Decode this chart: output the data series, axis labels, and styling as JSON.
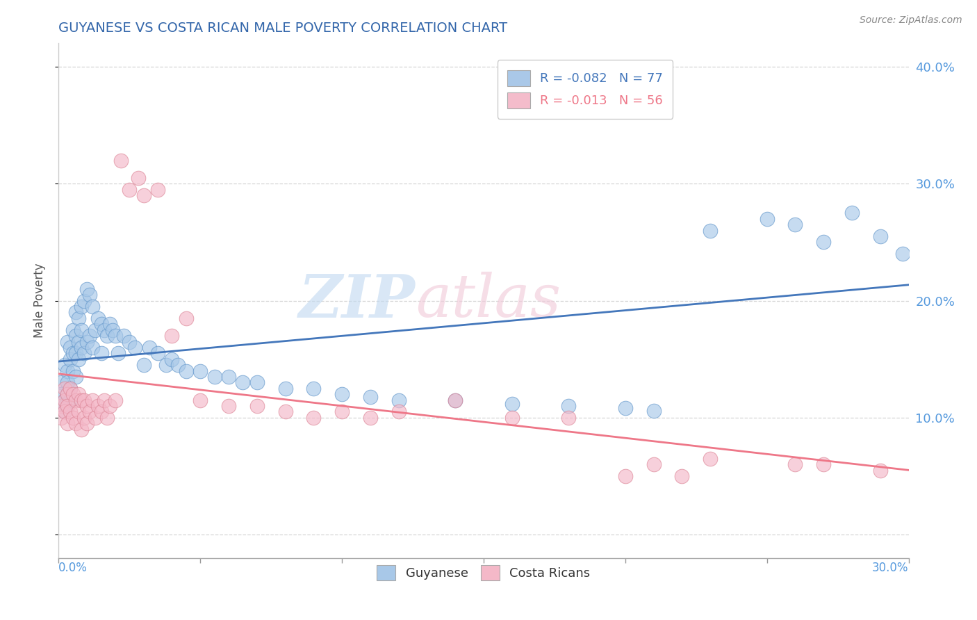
{
  "title": "GUYANESE VS COSTA RICAN MALE POVERTY CORRELATION CHART",
  "source": "Source: ZipAtlas.com",
  "ylabel": "Male Poverty",
  "xlim": [
    0.0,
    0.3
  ],
  "ylim": [
    -0.02,
    0.42
  ],
  "legend_entries": [
    {
      "label": "R = -0.082   N = 77",
      "facecolor": "#aac8e8"
    },
    {
      "label": "R = -0.013   N = 56",
      "facecolor": "#f4bccb"
    }
  ],
  "legend_bottom": [
    "Guyanese",
    "Costa Ricans"
  ],
  "guyanese_facecolor": "#a8c8e8",
  "guyanese_edgecolor": "#6699cc",
  "costa_rican_facecolor": "#f4b8c8",
  "costa_rican_edgecolor": "#dd8899",
  "trend_guyanese_color": "#4477bb",
  "trend_costa_rican_color": "#ee7788",
  "watermark_zip_color": "#c8ddf0",
  "watermark_atlas_color": "#e8c8d0",
  "R_guyanese": -0.082,
  "N_guyanese": 77,
  "R_costa_rican": -0.013,
  "N_costa_rican": 56,
  "background_color": "#ffffff",
  "grid_color": "#cccccc",
  "title_color": "#3366aa",
  "right_tick_color": "#5599dd",
  "bottom_tick_color": "#5599dd",
  "axis_label_color": "#555555",
  "guyanese_scatter_x": [
    0.001,
    0.001,
    0.002,
    0.002,
    0.002,
    0.002,
    0.003,
    0.003,
    0.003,
    0.003,
    0.004,
    0.004,
    0.004,
    0.004,
    0.005,
    0.005,
    0.005,
    0.006,
    0.006,
    0.006,
    0.006,
    0.007,
    0.007,
    0.007,
    0.008,
    0.008,
    0.008,
    0.009,
    0.009,
    0.01,
    0.01,
    0.011,
    0.011,
    0.012,
    0.012,
    0.013,
    0.014,
    0.015,
    0.015,
    0.016,
    0.017,
    0.018,
    0.019,
    0.02,
    0.021,
    0.023,
    0.025,
    0.027,
    0.03,
    0.032,
    0.035,
    0.038,
    0.04,
    0.042,
    0.045,
    0.05,
    0.055,
    0.06,
    0.065,
    0.07,
    0.08,
    0.09,
    0.1,
    0.11,
    0.12,
    0.14,
    0.16,
    0.18,
    0.2,
    0.21,
    0.23,
    0.25,
    0.26,
    0.27,
    0.28,
    0.29,
    0.298
  ],
  "guyanese_scatter_y": [
    0.13,
    0.12,
    0.145,
    0.115,
    0.11,
    0.105,
    0.165,
    0.14,
    0.13,
    0.12,
    0.16,
    0.15,
    0.125,
    0.115,
    0.175,
    0.155,
    0.14,
    0.19,
    0.17,
    0.155,
    0.135,
    0.185,
    0.165,
    0.15,
    0.195,
    0.175,
    0.16,
    0.2,
    0.155,
    0.21,
    0.165,
    0.205,
    0.17,
    0.195,
    0.16,
    0.175,
    0.185,
    0.18,
    0.155,
    0.175,
    0.17,
    0.18,
    0.175,
    0.17,
    0.155,
    0.17,
    0.165,
    0.16,
    0.145,
    0.16,
    0.155,
    0.145,
    0.15,
    0.145,
    0.14,
    0.14,
    0.135,
    0.135,
    0.13,
    0.13,
    0.125,
    0.125,
    0.12,
    0.118,
    0.115,
    0.115,
    0.112,
    0.11,
    0.108,
    0.106,
    0.26,
    0.27,
    0.265,
    0.25,
    0.275,
    0.255,
    0.24
  ],
  "costa_rican_scatter_x": [
    0.001,
    0.001,
    0.002,
    0.002,
    0.002,
    0.003,
    0.003,
    0.003,
    0.004,
    0.004,
    0.005,
    0.005,
    0.006,
    0.006,
    0.007,
    0.007,
    0.008,
    0.008,
    0.009,
    0.009,
    0.01,
    0.01,
    0.011,
    0.012,
    0.013,
    0.014,
    0.015,
    0.016,
    0.017,
    0.018,
    0.02,
    0.022,
    0.025,
    0.028,
    0.03,
    0.035,
    0.04,
    0.045,
    0.05,
    0.06,
    0.07,
    0.08,
    0.09,
    0.1,
    0.11,
    0.12,
    0.14,
    0.16,
    0.18,
    0.2,
    0.21,
    0.22,
    0.23,
    0.26,
    0.27,
    0.29
  ],
  "costa_rican_scatter_y": [
    0.11,
    0.1,
    0.125,
    0.115,
    0.105,
    0.12,
    0.11,
    0.095,
    0.125,
    0.105,
    0.12,
    0.1,
    0.115,
    0.095,
    0.12,
    0.105,
    0.115,
    0.09,
    0.115,
    0.1,
    0.11,
    0.095,
    0.105,
    0.115,
    0.1,
    0.11,
    0.105,
    0.115,
    0.1,
    0.11,
    0.115,
    0.32,
    0.295,
    0.305,
    0.29,
    0.295,
    0.17,
    0.185,
    0.115,
    0.11,
    0.11,
    0.105,
    0.1,
    0.105,
    0.1,
    0.105,
    0.115,
    0.1,
    0.1,
    0.05,
    0.06,
    0.05,
    0.065,
    0.06,
    0.06,
    0.055
  ]
}
